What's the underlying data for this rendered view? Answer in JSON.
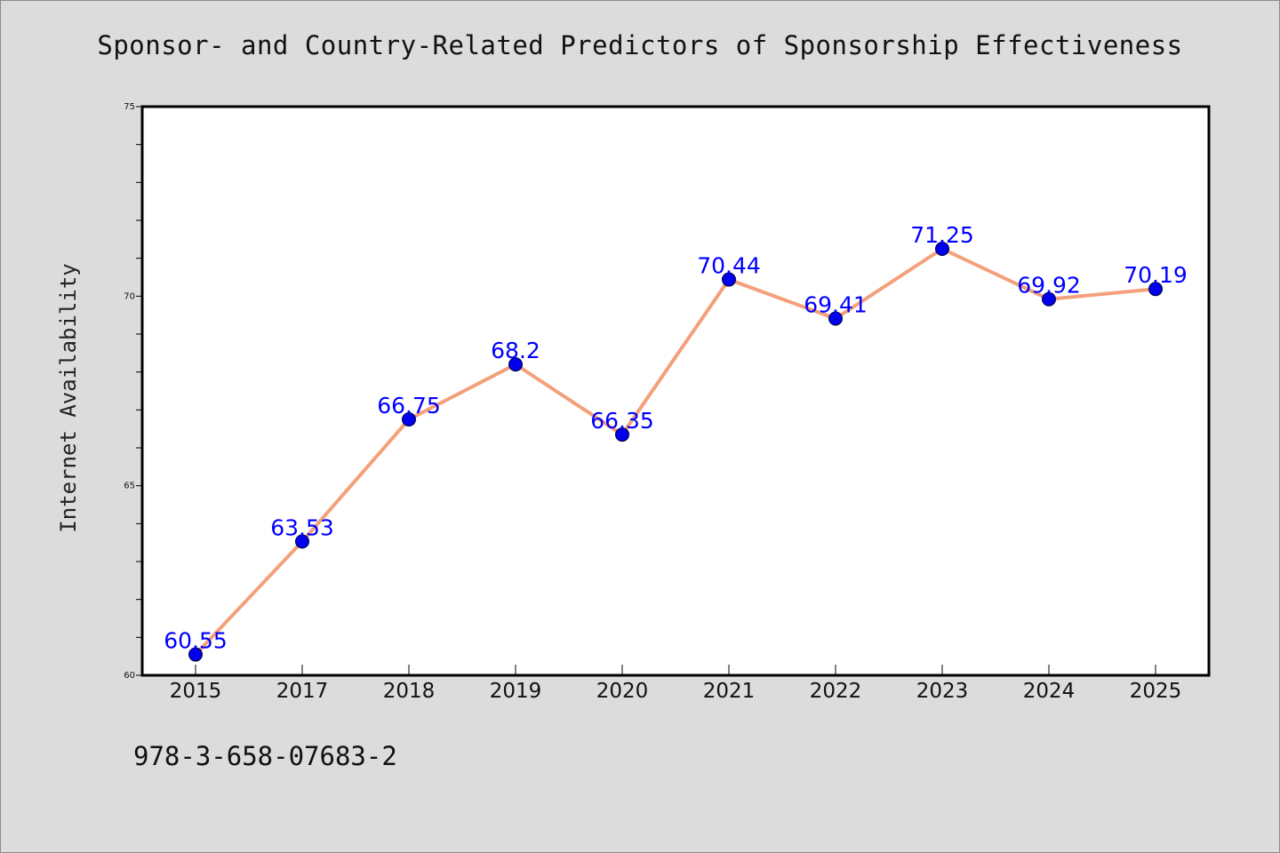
{
  "page": {
    "footer_text": "978-3-658-07683-2",
    "background_color": "#dcdcdc"
  },
  "chart_data": {
    "type": "line",
    "title": "Sponsor- and Country-Related Predictors of Sponsorship Effectiveness",
    "xlabel": "",
    "ylabel": "Internet Availability",
    "categories": [
      "2015",
      "2017",
      "2018",
      "2019",
      "2020",
      "2021",
      "2022",
      "2023",
      "2024",
      "2025"
    ],
    "series": [
      {
        "values": [
          60.55,
          63.53,
          66.75,
          68.2,
          66.35,
          70.44,
          69.41,
          71.25,
          69.92,
          70.19
        ],
        "data_labels": [
          "60.55",
          "63.53",
          "66.75",
          "68.2",
          "66.35",
          "70.44",
          "69.41",
          "71.25",
          "69.92",
          "70.19"
        ],
        "line_color": "#f4a07a",
        "marker_color": "#0000ee",
        "label_color": "#0000ff"
      }
    ],
    "ylim": [
      60,
      75
    ],
    "yticks": [
      60,
      65,
      70,
      75
    ],
    "ytick_labels": [
      "60",
      "65",
      "70",
      "75"
    ],
    "y_minor_step": 1,
    "grid": false,
    "legend": "none"
  }
}
